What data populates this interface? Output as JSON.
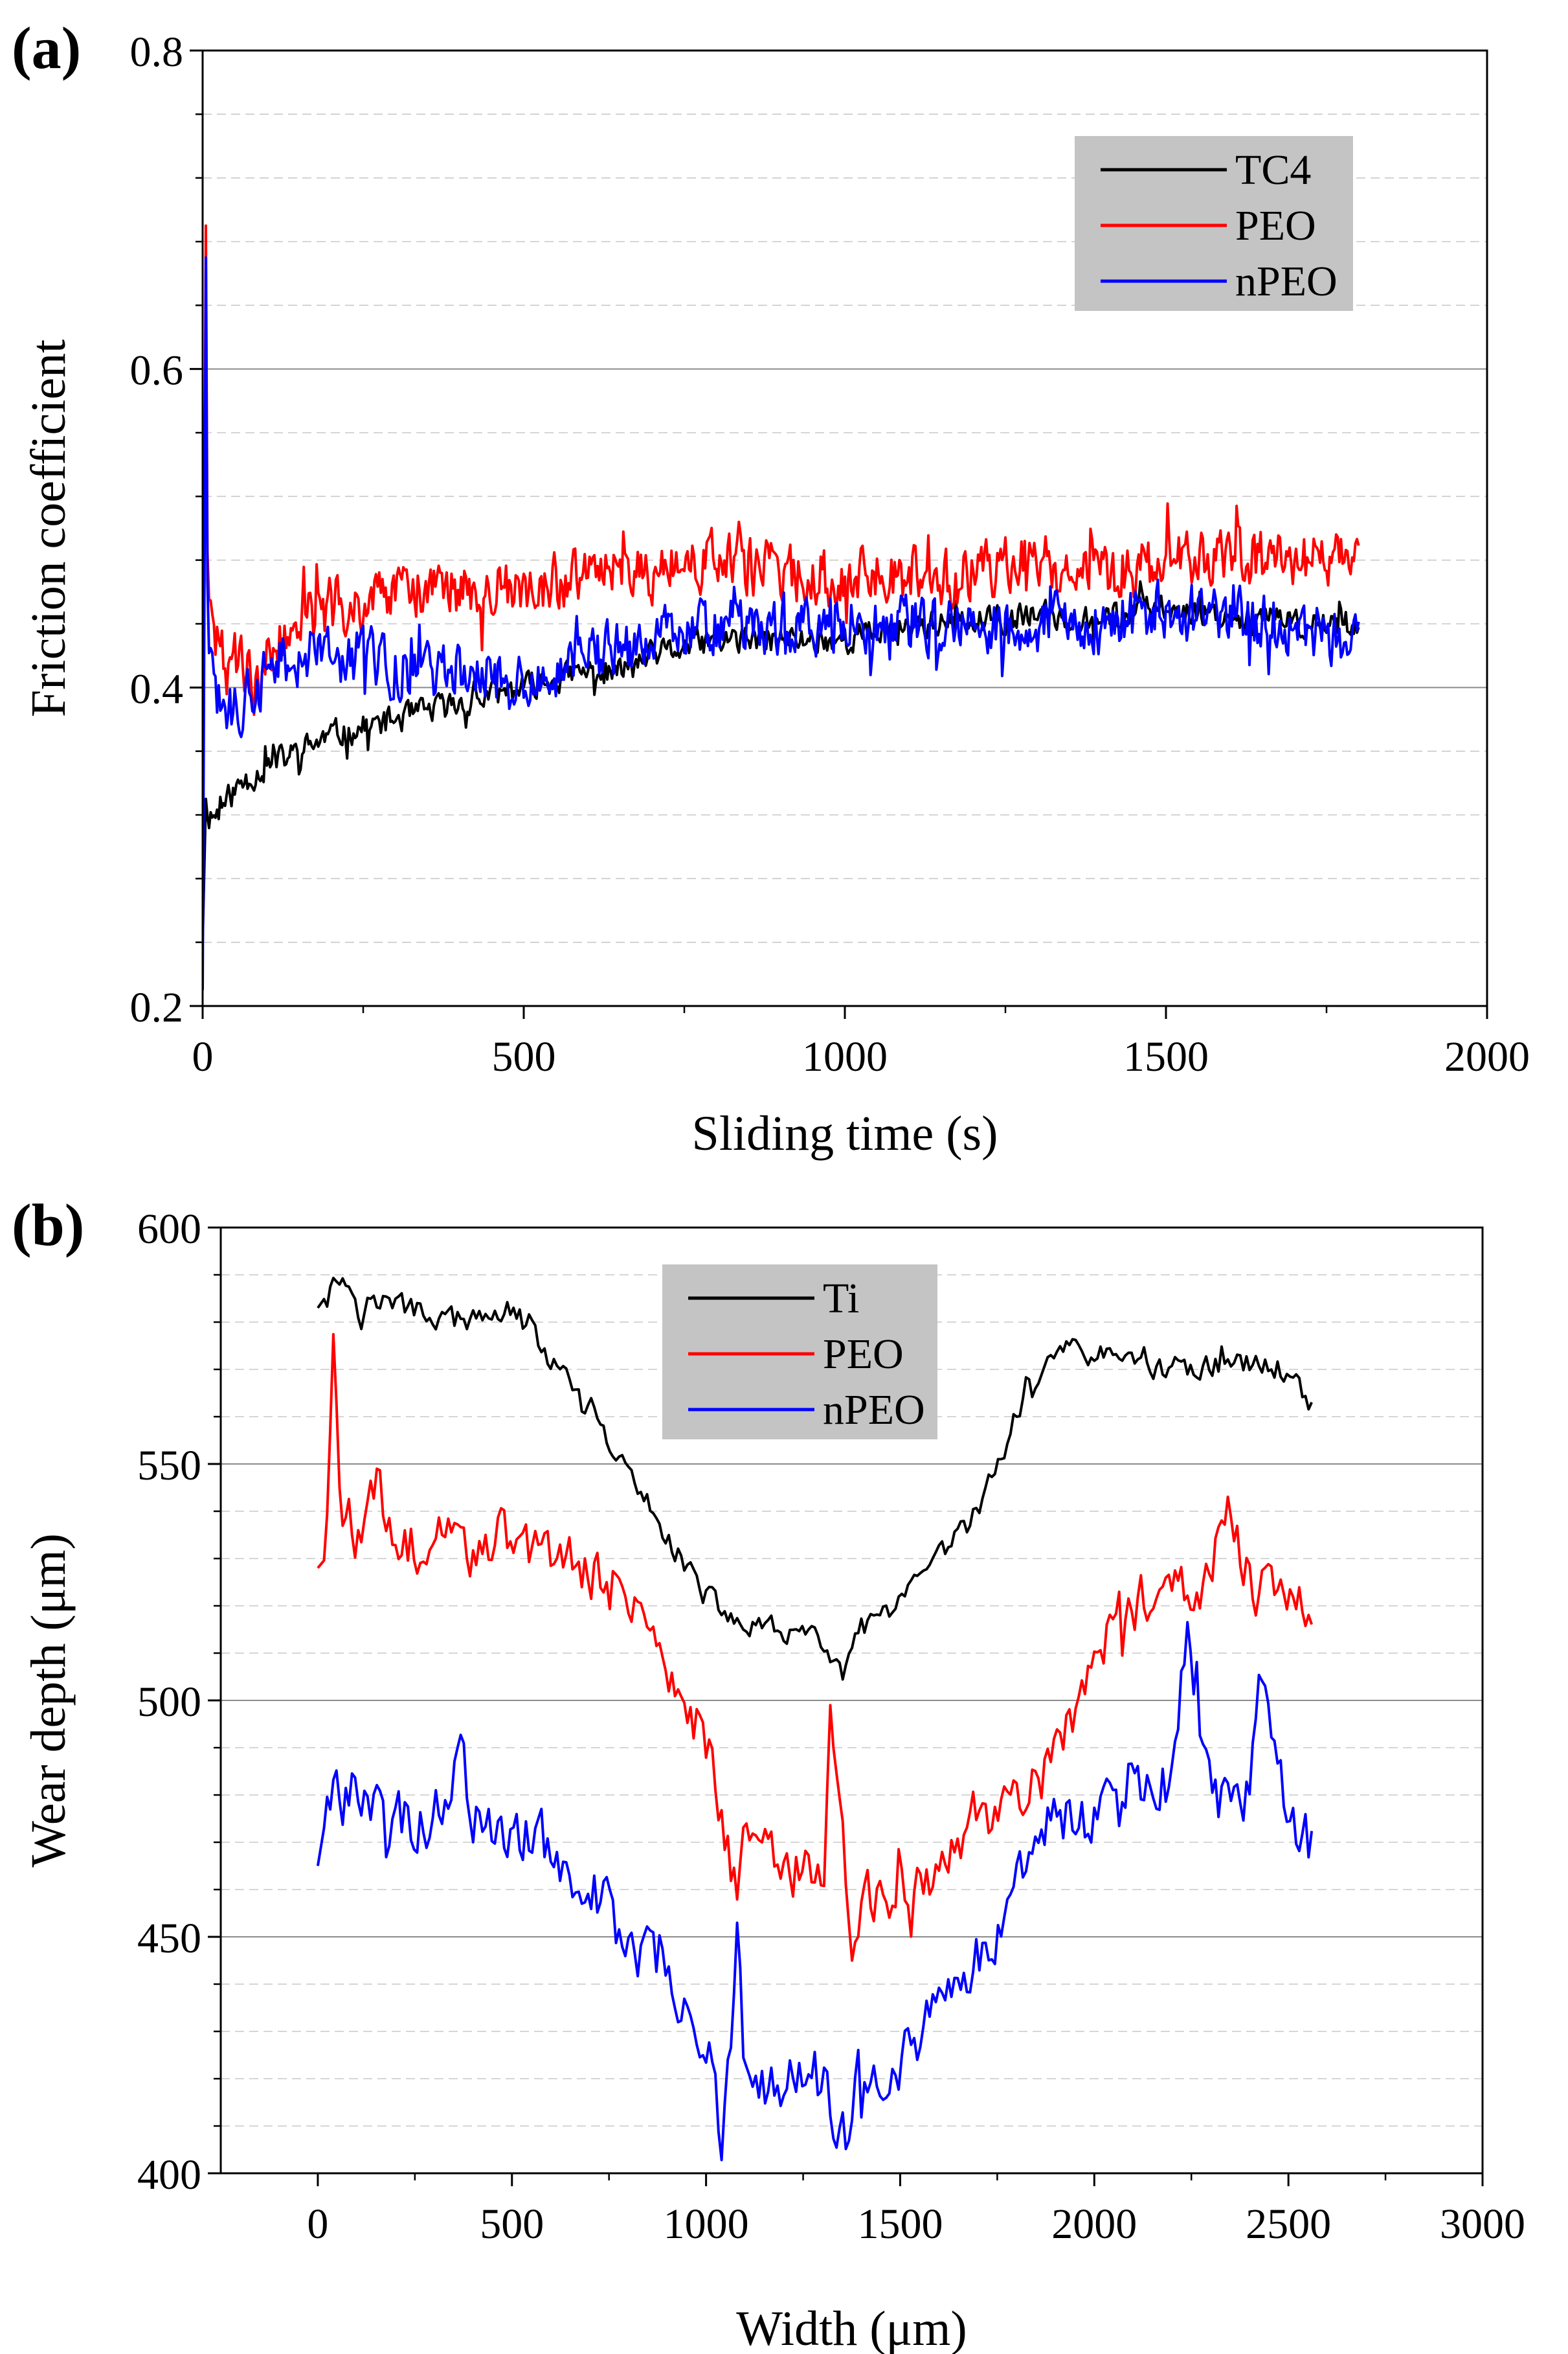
{
  "chart_data": [
    {
      "panel_label": "(a)",
      "type": "line",
      "xlabel": "Sliding time (s)",
      "ylabel": "Friction coefficient",
      "xlim": [
        0,
        2000
      ],
      "ylim": [
        0.2,
        0.8
      ],
      "xticks": [
        0,
        500,
        1000,
        1500,
        2000
      ],
      "yticks": [
        0.2,
        0.4,
        0.6,
        0.8
      ],
      "xtick_labels": [
        "0",
        "500",
        "1000",
        "1500",
        "2000"
      ],
      "ytick_labels": [
        "0.2",
        "0.4",
        "0.6",
        "0.8"
      ],
      "grid": true,
      "legend_position": "top-right",
      "series": [
        {
          "name": "TC4",
          "color": "#000000",
          "x": [
            0,
            5,
            10,
            20,
            40,
            60,
            100,
            150,
            200,
            250,
            300,
            350,
            400,
            450,
            500,
            550,
            600,
            650,
            700,
            800,
            900,
            1000,
            1100,
            1200,
            1300,
            1400,
            1500,
            1600,
            1700,
            1800
          ],
          "y": [
            0.24,
            0.33,
            0.32,
            0.32,
            0.33,
            0.34,
            0.35,
            0.36,
            0.37,
            0.375,
            0.38,
            0.385,
            0.39,
            0.395,
            0.4,
            0.405,
            0.41,
            0.41,
            0.42,
            0.43,
            0.43,
            0.43,
            0.44,
            0.44,
            0.445,
            0.445,
            0.45,
            0.445,
            0.44,
            0.44
          ]
        },
        {
          "name": "PEO",
          "color": "#ff0000",
          "x": [
            0,
            5,
            8,
            12,
            20,
            40,
            60,
            80,
            100,
            150,
            200,
            250,
            300,
            400,
            500,
            600,
            700,
            800,
            900,
            1000,
            1100,
            1200,
            1300,
            1400,
            1500,
            1600,
            1700,
            1800
          ],
          "y": [
            0.28,
            0.69,
            0.45,
            0.44,
            0.43,
            0.41,
            0.42,
            0.4,
            0.42,
            0.44,
            0.45,
            0.45,
            0.46,
            0.46,
            0.46,
            0.47,
            0.47,
            0.48,
            0.47,
            0.47,
            0.47,
            0.47,
            0.48,
            0.47,
            0.48,
            0.48,
            0.48,
            0.48
          ]
        },
        {
          "name": "nPEO",
          "color": "#0000ff",
          "x": [
            0,
            5,
            8,
            12,
            20,
            40,
            60,
            80,
            100,
            150,
            200,
            250,
            300,
            400,
            500,
            600,
            700,
            800,
            900,
            1000,
            1100,
            1200,
            1300,
            1400,
            1500,
            1600,
            1700,
            1800
          ],
          "y": [
            0.21,
            0.67,
            0.42,
            0.41,
            0.39,
            0.38,
            0.39,
            0.4,
            0.41,
            0.42,
            0.42,
            0.42,
            0.41,
            0.41,
            0.4,
            0.42,
            0.43,
            0.44,
            0.44,
            0.44,
            0.44,
            0.44,
            0.44,
            0.44,
            0.45,
            0.44,
            0.44,
            0.43
          ]
        }
      ]
    },
    {
      "panel_label": "(b)",
      "type": "line",
      "xlabel": "Width (μm)",
      "ylabel": "Wear depth (μm)",
      "xlim": [
        -250,
        3000
      ],
      "ylim": [
        400,
        600
      ],
      "xticks": [
        0,
        500,
        1000,
        1500,
        2000,
        2500,
        3000
      ],
      "yticks": [
        400,
        450,
        500,
        550,
        600
      ],
      "xtick_labels": [
        "0",
        "500",
        "1000",
        "1500",
        "2000",
        "2500",
        "3000"
      ],
      "ytick_labels": [
        "400",
        "450",
        "500",
        "550",
        "600"
      ],
      "grid": true,
      "legend_position": "top-center",
      "series": [
        {
          "name": "Ti",
          "color": "#000000",
          "x": [
            0,
            60,
            100,
            200,
            300,
            400,
            500,
            600,
            700,
            800,
            900,
            1000,
            1100,
            1200,
            1300,
            1350,
            1400,
            1500,
            1600,
            1700,
            1800,
            1900,
            2000,
            2100,
            2200,
            2300,
            2400,
            2500,
            2560
          ],
          "y": [
            583,
            590,
            585,
            584,
            581,
            580,
            583,
            572,
            560,
            548,
            535,
            522,
            515,
            515,
            512,
            505,
            515,
            520,
            530,
            540,
            560,
            575,
            573,
            572,
            570,
            571,
            571,
            570,
            563
          ]
        },
        {
          "name": "PEO",
          "color": "#ff0000",
          "x": [
            0,
            20,
            40,
            60,
            100,
            150,
            200,
            300,
            400,
            500,
            600,
            700,
            800,
            900,
            1000,
            1080,
            1100,
            1200,
            1300,
            1320,
            1360,
            1380,
            1400,
            1500,
            1600,
            1700,
            1800,
            1900,
            2000,
            2100,
            2200,
            2300,
            2340,
            2400,
            2500,
            2560
          ],
          "y": [
            528,
            530,
            573,
            540,
            535,
            545,
            530,
            535,
            532,
            535,
            530,
            527,
            522,
            508,
            492,
            460,
            472,
            465,
            462,
            505,
            460,
            441,
            458,
            458,
            465,
            475,
            480,
            487,
            510,
            520,
            525,
            525,
            544,
            525,
            520,
            518
          ]
        },
        {
          "name": "nPEO",
          "color": "#0000ff",
          "x": [
            0,
            20,
            40,
            100,
            200,
            300,
            360,
            400,
            500,
            600,
            700,
            800,
            900,
            1000,
            1040,
            1080,
            1100,
            1200,
            1300,
            1360,
            1400,
            1500,
            1600,
            1700,
            1800,
            1900,
            2000,
            2100,
            2200,
            2240,
            2300,
            2400,
            2420,
            2500,
            2560
          ],
          "y": [
            465,
            475,
            478,
            480,
            475,
            475,
            490,
            475,
            470,
            470,
            460,
            450,
            440,
            430,
            408,
            452,
            420,
            420,
            420,
            408,
            422,
            425,
            435,
            445,
            460,
            475,
            475,
            478,
            482,
            515,
            478,
            480,
            506,
            478,
            468
          ]
        }
      ]
    }
  ]
}
